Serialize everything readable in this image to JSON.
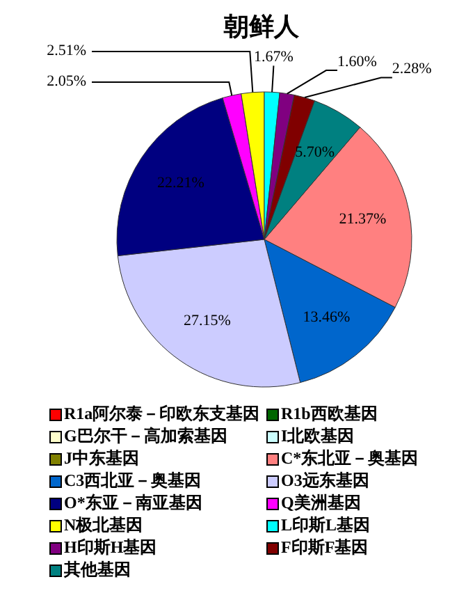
{
  "chart_data": {
    "type": "pie",
    "title": "朝鲜人",
    "categories": [
      "R1a阿尔泰－印欧东支基因",
      "R1b西欧基因",
      "G巴尔干－高加索基因",
      "I北欧基因",
      "J中东基因",
      "C*东北亚－奥基因",
      "C3西北亚－奥基因",
      "O3远东基因",
      "O*东亚－南亚基因",
      "Q美洲基因",
      "N极北基因",
      "L印斯L基因",
      "H印斯H基因",
      "F印斯F基因",
      "其他基因"
    ],
    "values": [
      0,
      0,
      0,
      0,
      0,
      21.37,
      13.46,
      27.15,
      22.21,
      2.05,
      2.51,
      1.67,
      1.6,
      2.28,
      5.7
    ],
    "colors": [
      "#ff0000",
      "#006600",
      "#ffffcc",
      "#ccffff",
      "#808000",
      "#ff8080",
      "#0066cc",
      "#ccccff",
      "#000080",
      "#ff00ff",
      "#ffff00",
      "#00ffff",
      "#800080",
      "#800000",
      "#008080"
    ],
    "value_labels": [
      null,
      null,
      null,
      null,
      null,
      "21.37%",
      "13.46%",
      "27.15%",
      "22.21%",
      "2.05%",
      "2.51%",
      "1.67%",
      "1.60%",
      "2.28%",
      "5.70%"
    ],
    "legend": "bottom"
  }
}
